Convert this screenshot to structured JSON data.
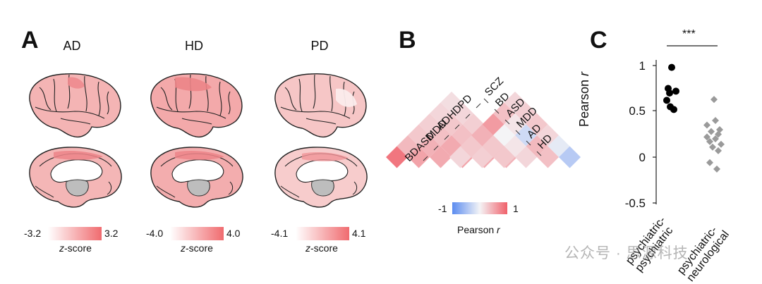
{
  "panels": {
    "a": "A",
    "b": "B",
    "c": "C"
  },
  "brains": [
    {
      "title": "AD",
      "cbar_min": "-3.2",
      "cbar_max": "3.2",
      "cbar_label_italic": "z",
      "cbar_label_rest": "-score"
    },
    {
      "title": "HD",
      "cbar_min": "-4.0",
      "cbar_max": "4.0",
      "cbar_label_italic": "z",
      "cbar_label_rest": "-score"
    },
    {
      "title": "PD",
      "cbar_min": "-4.1",
      "cbar_max": "4.1",
      "cbar_label_italic": "z",
      "cbar_label_rest": "-score"
    }
  ],
  "heatmap": {
    "left_labels": [
      "BD",
      "ASD",
      "MDD",
      "AD",
      "HD",
      "PD"
    ],
    "right_labels": [
      "SCZ",
      "BD",
      "ASD",
      "MDD",
      "AD",
      "HD"
    ],
    "colorbar_min": "-1",
    "colorbar_max": "1",
    "colorbar_title": "Pearson",
    "colorbar_title_var": "r",
    "colors": {
      "neg": "#5b8cf0",
      "mid": "#f4f4f6",
      "pos": "#f0606a"
    }
  },
  "chart_data": {
    "type": "scatter",
    "ylabel": "Pearson",
    "ylabel_var": "r",
    "ylim": [
      -0.5,
      1
    ],
    "yticks": [
      "1",
      "0.5",
      "0",
      "-0.5"
    ],
    "categories": [
      "psychiatric-\npsychiatric",
      "psychiatric-\nneurological"
    ],
    "significance": "***",
    "series": [
      {
        "values": [
          0.98,
          0.75,
          0.72,
          0.7,
          0.62,
          0.55,
          0.52
        ],
        "color": "#000000",
        "marker": "circle"
      },
      {
        "values": [
          0.63,
          0.4,
          0.35,
          0.3,
          0.28,
          0.25,
          0.22,
          0.2,
          0.17,
          0.14,
          0.11,
          0.07,
          -0.06,
          -0.13
        ],
        "color": "#9a9a9a",
        "marker": "diamond"
      }
    ]
  },
  "watermark": "公众号 · 思源科技"
}
